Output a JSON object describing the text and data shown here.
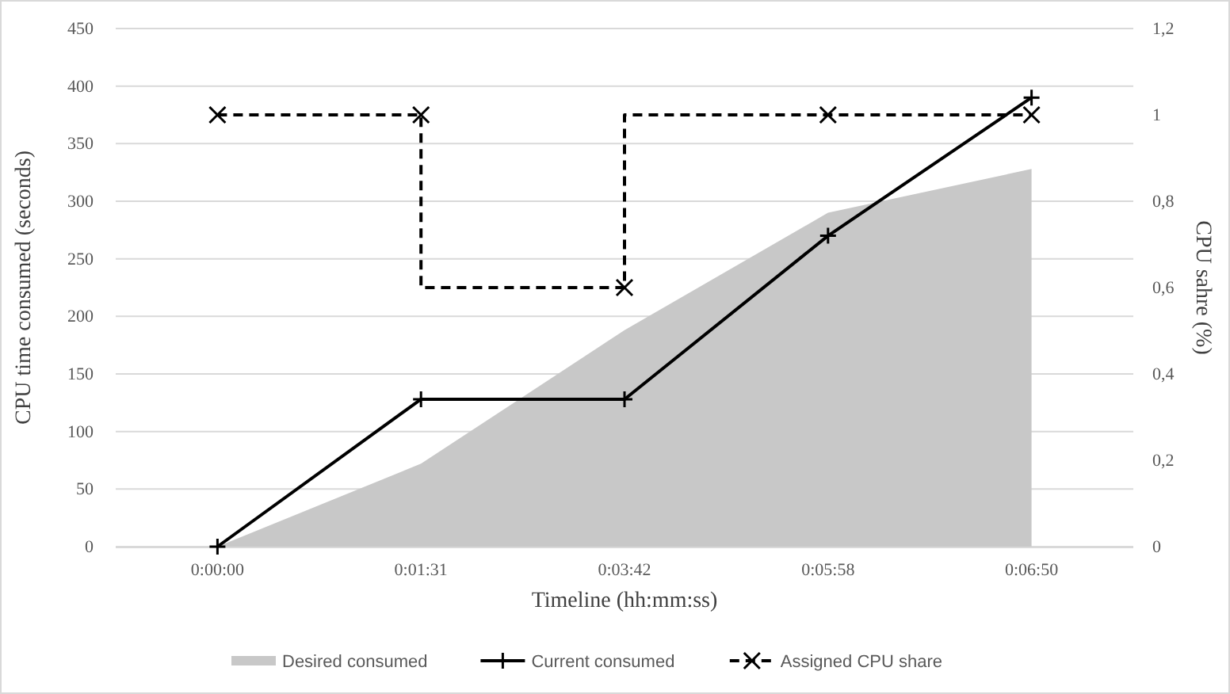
{
  "chart_data": {
    "type": "line",
    "xlabel": "Timeline (hh:mm:ss)",
    "ylabel": "CPU time consumed (seconds)",
    "y2label": "CPU sahre (%)",
    "categories": [
      "0:00:00",
      "0:01:31",
      "0:03:42",
      "0:05:58",
      "0:06:50"
    ],
    "series": [
      {
        "name": "Desired consumed",
        "type": "area",
        "color": "#c8c8c8",
        "values": [
          0,
          72,
          188,
          290,
          328
        ]
      },
      {
        "name": "Current consumed",
        "color": "#000000",
        "marker": "cross",
        "line_style": "solid",
        "values": [
          0,
          128,
          128,
          270,
          390
        ]
      },
      {
        "name": "Assigned CPU share",
        "type": "step",
        "axis": "y2",
        "color": "#000000",
        "marker": "x",
        "line_style": "dashed",
        "values": [
          1,
          1,
          0.6,
          1,
          1
        ]
      }
    ],
    "ylim": [
      0,
      450
    ],
    "yticks": [
      0,
      50,
      100,
      150,
      200,
      250,
      300,
      350,
      400,
      450
    ],
    "y2lim": [
      0,
      1.2
    ],
    "y2ticks": [
      0,
      {
        "value": 0.2,
        "label": "0,2"
      },
      {
        "value": 0.4,
        "label": "0,4"
      },
      {
        "value": 0.6,
        "label": "0,6"
      },
      {
        "value": 0.8,
        "label": "0,8"
      },
      1,
      {
        "value": 1.2,
        "label": "1,2"
      }
    ],
    "grid": "y",
    "legend": "bottom"
  }
}
